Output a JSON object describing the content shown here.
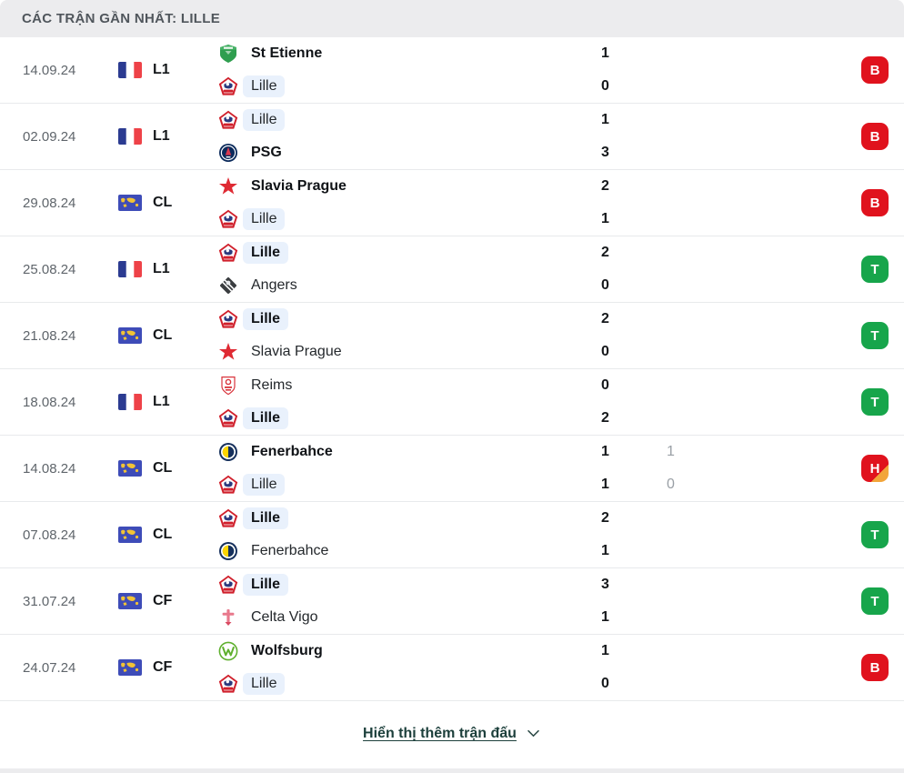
{
  "header": {
    "title": "CÁC TRẬN GẦN NHẤT: LILLE"
  },
  "footer": {
    "show_more_label": "Hiển thị thêm trận đấu",
    "chevron_icon": "chevron-down-icon"
  },
  "colors": {
    "win_badge": "#17a54b",
    "loss_badge": "#e0121d",
    "draw_badge_corner": "#f2a53a",
    "team_highlight": "#e9f1fc",
    "link": "#1d403c",
    "header_bg": "#ececee"
  },
  "matches": [
    {
      "date": "14.09.24",
      "competition": "L1",
      "flag": "france-flag-icon",
      "home": {
        "name": "St Etienne",
        "logo": "st-etienne-logo",
        "winner": true,
        "highlight": false,
        "score": "1",
        "score2": ""
      },
      "away": {
        "name": "Lille",
        "logo": "lille-logo",
        "winner": false,
        "highlight": true,
        "score": "0",
        "score2": ""
      },
      "result": {
        "label": "B",
        "type": "loss"
      }
    },
    {
      "date": "02.09.24",
      "competition": "L1",
      "flag": "france-flag-icon",
      "home": {
        "name": "Lille",
        "logo": "lille-logo",
        "winner": false,
        "highlight": true,
        "score": "1",
        "score2": ""
      },
      "away": {
        "name": "PSG",
        "logo": "psg-logo",
        "winner": true,
        "highlight": false,
        "score": "3",
        "score2": ""
      },
      "result": {
        "label": "B",
        "type": "loss"
      }
    },
    {
      "date": "29.08.24",
      "competition": "CL",
      "flag": "world-flag-icon",
      "home": {
        "name": "Slavia Prague",
        "logo": "slavia-prague-logo",
        "winner": true,
        "highlight": false,
        "score": "2",
        "score2": ""
      },
      "away": {
        "name": "Lille",
        "logo": "lille-logo",
        "winner": false,
        "highlight": true,
        "score": "1",
        "score2": ""
      },
      "result": {
        "label": "B",
        "type": "loss"
      }
    },
    {
      "date": "25.08.24",
      "competition": "L1",
      "flag": "france-flag-icon",
      "home": {
        "name": "Lille",
        "logo": "lille-logo",
        "winner": true,
        "highlight": true,
        "score": "2",
        "score2": ""
      },
      "away": {
        "name": "Angers",
        "logo": "angers-logo",
        "winner": false,
        "highlight": false,
        "score": "0",
        "score2": ""
      },
      "result": {
        "label": "T",
        "type": "win"
      }
    },
    {
      "date": "21.08.24",
      "competition": "CL",
      "flag": "world-flag-icon",
      "home": {
        "name": "Lille",
        "logo": "lille-logo",
        "winner": true,
        "highlight": true,
        "score": "2",
        "score2": ""
      },
      "away": {
        "name": "Slavia Prague",
        "logo": "slavia-prague-logo",
        "winner": false,
        "highlight": false,
        "score": "0",
        "score2": ""
      },
      "result": {
        "label": "T",
        "type": "win"
      }
    },
    {
      "date": "18.08.24",
      "competition": "L1",
      "flag": "france-flag-icon",
      "home": {
        "name": "Reims",
        "logo": "reims-logo",
        "winner": false,
        "highlight": false,
        "score": "0",
        "score2": ""
      },
      "away": {
        "name": "Lille",
        "logo": "lille-logo",
        "winner": true,
        "highlight": true,
        "score": "2",
        "score2": ""
      },
      "result": {
        "label": "T",
        "type": "win"
      }
    },
    {
      "date": "14.08.24",
      "competition": "CL",
      "flag": "world-flag-icon",
      "home": {
        "name": "Fenerbahce",
        "logo": "fenerbahce-logo",
        "winner": true,
        "highlight": false,
        "score": "1",
        "score2": "1"
      },
      "away": {
        "name": "Lille",
        "logo": "lille-logo",
        "winner": false,
        "highlight": true,
        "score": "1",
        "score2": "0"
      },
      "result": {
        "label": "H",
        "type": "draw"
      }
    },
    {
      "date": "07.08.24",
      "competition": "CL",
      "flag": "world-flag-icon",
      "home": {
        "name": "Lille",
        "logo": "lille-logo",
        "winner": true,
        "highlight": true,
        "score": "2",
        "score2": ""
      },
      "away": {
        "name": "Fenerbahce",
        "logo": "fenerbahce-logo",
        "winner": false,
        "highlight": false,
        "score": "1",
        "score2": ""
      },
      "result": {
        "label": "T",
        "type": "win"
      }
    },
    {
      "date": "31.07.24",
      "competition": "CF",
      "flag": "world-flag-icon",
      "home": {
        "name": "Lille",
        "logo": "lille-logo",
        "winner": true,
        "highlight": true,
        "score": "3",
        "score2": ""
      },
      "away": {
        "name": "Celta Vigo",
        "logo": "celta-vigo-logo",
        "winner": false,
        "highlight": false,
        "score": "1",
        "score2": ""
      },
      "result": {
        "label": "T",
        "type": "win"
      }
    },
    {
      "date": "24.07.24",
      "competition": "CF",
      "flag": "world-flag-icon",
      "home": {
        "name": "Wolfsburg",
        "logo": "wolfsburg-logo",
        "winner": true,
        "highlight": false,
        "score": "1",
        "score2": ""
      },
      "away": {
        "name": "Lille",
        "logo": "lille-logo",
        "winner": false,
        "highlight": true,
        "score": "0",
        "score2": ""
      },
      "result": {
        "label": "B",
        "type": "loss"
      }
    }
  ]
}
